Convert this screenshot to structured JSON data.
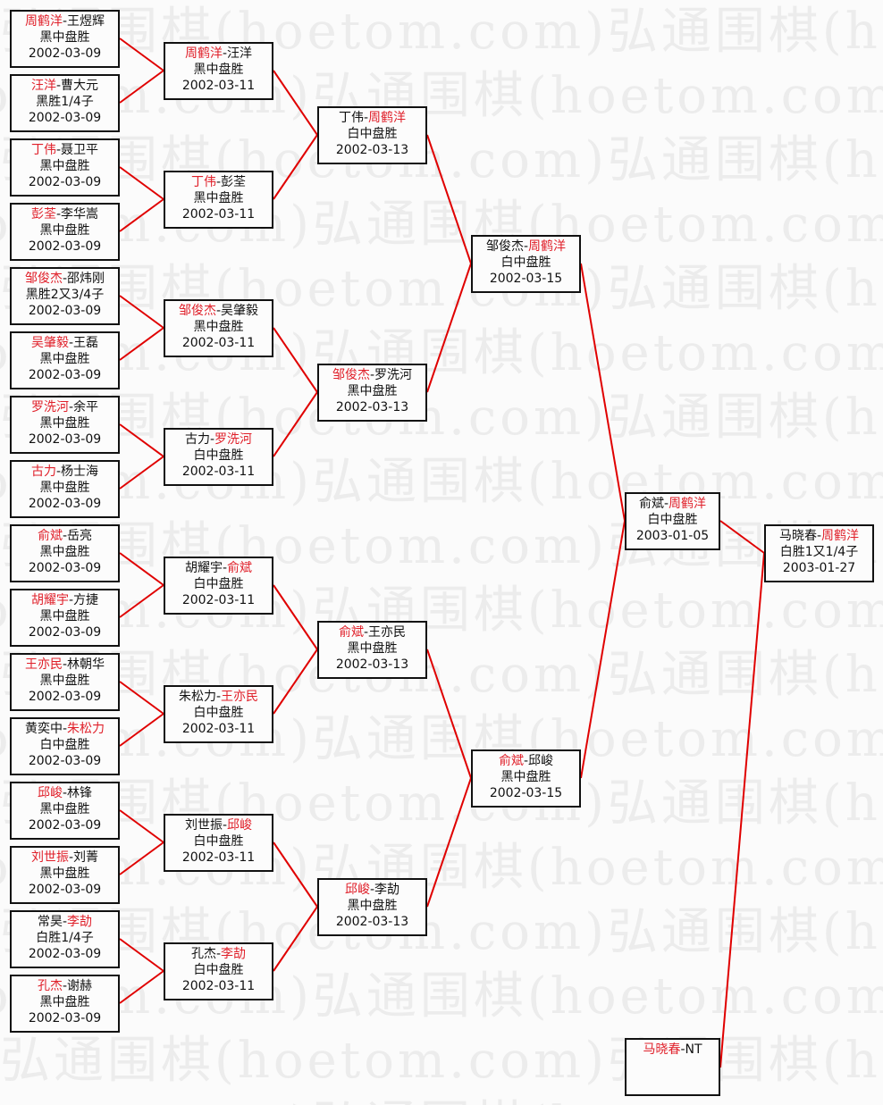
{
  "watermark": "弘通围棋(hoetom.com)",
  "colors": {
    "winner": "#e0202a",
    "line": "#e00000",
    "text": "#111111"
  },
  "rounds": [
    [
      {
        "p1": "周鹤洋",
        "p2": "王煜辉",
        "winner": 1,
        "result": "黑中盘胜",
        "date": "2002-03-09"
      },
      {
        "p1": "汪洋",
        "p2": "曹大元",
        "winner": 1,
        "result": "黑胜1/4子",
        "date": "2002-03-09"
      },
      {
        "p1": "丁伟",
        "p2": "聂卫平",
        "winner": 1,
        "result": "黑中盘胜",
        "date": "2002-03-09"
      },
      {
        "p1": "彭荃",
        "p2": "李华嵩",
        "winner": 1,
        "result": "黑中盘胜",
        "date": "2002-03-09"
      },
      {
        "p1": "邹俊杰",
        "p2": "邵炜刚",
        "winner": 1,
        "result": "黑胜2又3/4子",
        "date": "2002-03-09"
      },
      {
        "p1": "吴肇毅",
        "p2": "王磊",
        "winner": 1,
        "result": "黑中盘胜",
        "date": "2002-03-09"
      },
      {
        "p1": "罗洗河",
        "p2": "余平",
        "winner": 1,
        "result": "黑中盘胜",
        "date": "2002-03-09"
      },
      {
        "p1": "古力",
        "p2": "杨士海",
        "winner": 1,
        "result": "黑中盘胜",
        "date": "2002-03-09"
      },
      {
        "p1": "俞斌",
        "p2": "岳亮",
        "winner": 1,
        "result": "黑中盘胜",
        "date": "2002-03-09"
      },
      {
        "p1": "胡耀宇",
        "p2": "方捷",
        "winner": 1,
        "result": "黑中盘胜",
        "date": "2002-03-09"
      },
      {
        "p1": "王亦民",
        "p2": "林朝华",
        "winner": 1,
        "result": "黑中盘胜",
        "date": "2002-03-09"
      },
      {
        "p1": "黄奕中",
        "p2": "朱松力",
        "winner": 2,
        "result": "白中盘胜",
        "date": "2002-03-09"
      },
      {
        "p1": "邱峻",
        "p2": "林锋",
        "winner": 1,
        "result": "黑中盘胜",
        "date": "2002-03-09"
      },
      {
        "p1": "刘世振",
        "p2": "刘菁",
        "winner": 1,
        "result": "黑中盘胜",
        "date": "2002-03-09"
      },
      {
        "p1": "常昊",
        "p2": "李劼",
        "winner": 2,
        "result": "白胜1/4子",
        "date": "2002-03-09"
      },
      {
        "p1": "孔杰",
        "p2": "谢赫",
        "winner": 1,
        "result": "黑中盘胜",
        "date": "2002-03-09"
      }
    ],
    [
      {
        "p1": "周鹤洋",
        "p2": "汪洋",
        "winner": 1,
        "result": "黑中盘胜",
        "date": "2002-03-11"
      },
      {
        "p1": "丁伟",
        "p2": "彭荃",
        "winner": 1,
        "result": "黑中盘胜",
        "date": "2002-03-11"
      },
      {
        "p1": "邹俊杰",
        "p2": "吴肇毅",
        "winner": 1,
        "result": "黑中盘胜",
        "date": "2002-03-11"
      },
      {
        "p1": "古力",
        "p2": "罗洗河",
        "winner": 2,
        "result": "白中盘胜",
        "date": "2002-03-11"
      },
      {
        "p1": "胡耀宇",
        "p2": "俞斌",
        "winner": 2,
        "result": "白中盘胜",
        "date": "2002-03-11"
      },
      {
        "p1": "朱松力",
        "p2": "王亦民",
        "winner": 2,
        "result": "白中盘胜",
        "date": "2002-03-11"
      },
      {
        "p1": "刘世振",
        "p2": "邱峻",
        "winner": 2,
        "result": "白中盘胜",
        "date": "2002-03-11"
      },
      {
        "p1": "孔杰",
        "p2": "李劼",
        "winner": 2,
        "result": "白中盘胜",
        "date": "2002-03-11"
      }
    ],
    [
      {
        "p1": "丁伟",
        "p2": "周鹤洋",
        "winner": 2,
        "result": "白中盘胜",
        "date": "2002-03-13"
      },
      {
        "p1": "邹俊杰",
        "p2": "罗洗河",
        "winner": 1,
        "result": "黑中盘胜",
        "date": "2002-03-13"
      },
      {
        "p1": "俞斌",
        "p2": "王亦民",
        "winner": 1,
        "result": "黑中盘胜",
        "date": "2002-03-13"
      },
      {
        "p1": "邱峻",
        "p2": "李劼",
        "winner": 1,
        "result": "黑中盘胜",
        "date": "2002-03-13"
      }
    ],
    [
      {
        "p1": "邹俊杰",
        "p2": "周鹤洋",
        "winner": 2,
        "result": "白中盘胜",
        "date": "2002-03-15"
      },
      {
        "p1": "俞斌",
        "p2": "邱峻",
        "winner": 1,
        "result": "黑中盘胜",
        "date": "2002-03-15"
      }
    ],
    [
      {
        "p1": "俞斌",
        "p2": "周鹤洋",
        "winner": 2,
        "result": "白中盘胜",
        "date": "2003-01-05"
      }
    ]
  ],
  "seed": {
    "p1": "马晓春",
    "p2": "NT",
    "winner": 1,
    "result": "",
    "date": ""
  },
  "final": {
    "p1": "马晓春",
    "p2": "周鹤洋",
    "winner": 2,
    "result": "白胜1又1/4子",
    "date": "2003-01-27"
  }
}
